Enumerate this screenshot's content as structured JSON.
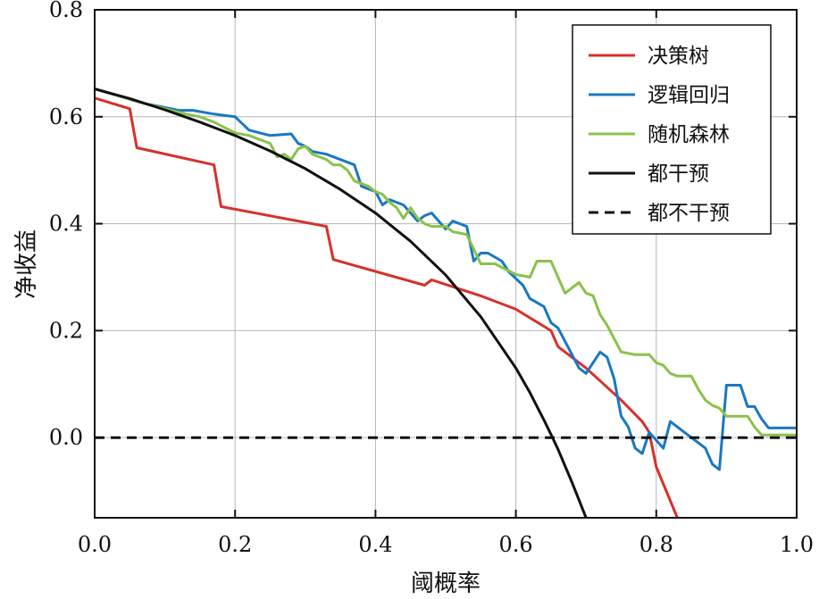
{
  "chart_data": {
    "type": "line",
    "xlabel": "阈概率",
    "ylabel": "净收益",
    "xlim": [
      0.0,
      1.0
    ],
    "ylim": [
      -0.15,
      0.8
    ],
    "xticks": [
      0.0,
      0.2,
      0.4,
      0.6,
      0.8,
      1.0
    ],
    "xtick_labels": [
      "0.0",
      "0.2",
      "0.4",
      "0.6",
      "0.8",
      "1.0"
    ],
    "yticks": [
      0.0,
      0.2,
      0.4,
      0.6,
      0.8
    ],
    "ytick_labels": [
      "0.0",
      "0.2",
      "0.4",
      "0.6",
      "0.8"
    ],
    "grid": true,
    "legend_position": "top-right",
    "series": [
      {
        "name": "决策树",
        "color": "#d7302a",
        "style": "solid",
        "x": [
          0.0,
          0.05,
          0.06,
          0.17,
          0.18,
          0.33,
          0.34,
          0.47,
          0.48,
          0.55,
          0.6,
          0.65,
          0.66,
          0.7,
          0.75,
          0.78,
          0.79,
          0.8,
          0.83
        ],
        "y": [
          0.635,
          0.615,
          0.542,
          0.51,
          0.432,
          0.395,
          0.333,
          0.285,
          0.295,
          0.265,
          0.24,
          0.2,
          0.17,
          0.13,
          0.07,
          0.03,
          0.01,
          -0.055,
          -0.15
        ]
      },
      {
        "name": "逻辑回归",
        "color": "#1a78c2",
        "style": "solid",
        "x": [
          0.0,
          0.07,
          0.09,
          0.12,
          0.14,
          0.17,
          0.2,
          0.22,
          0.25,
          0.28,
          0.29,
          0.3,
          0.31,
          0.33,
          0.35,
          0.37,
          0.38,
          0.4,
          0.41,
          0.42,
          0.43,
          0.44,
          0.46,
          0.47,
          0.48,
          0.5,
          0.51,
          0.53,
          0.54,
          0.55,
          0.56,
          0.58,
          0.59,
          0.61,
          0.62,
          0.64,
          0.65,
          0.66,
          0.67,
          0.69,
          0.7,
          0.72,
          0.73,
          0.74,
          0.75,
          0.76,
          0.77,
          0.78,
          0.79,
          0.8,
          0.81,
          0.82,
          0.83,
          0.84,
          0.85,
          0.86,
          0.87,
          0.88,
          0.89,
          0.9,
          0.91,
          0.92,
          0.93,
          0.94,
          0.95,
          0.96,
          1.0
        ],
        "y": [
          0.652,
          0.625,
          0.62,
          0.612,
          0.612,
          0.605,
          0.6,
          0.575,
          0.565,
          0.568,
          0.55,
          0.545,
          0.535,
          0.53,
          0.52,
          0.51,
          0.47,
          0.46,
          0.435,
          0.445,
          0.44,
          0.435,
          0.405,
          0.415,
          0.42,
          0.39,
          0.405,
          0.395,
          0.33,
          0.345,
          0.345,
          0.33,
          0.31,
          0.285,
          0.26,
          0.245,
          0.215,
          0.205,
          0.18,
          0.13,
          0.12,
          0.16,
          0.15,
          0.11,
          0.04,
          0.02,
          -0.02,
          -0.03,
          0.01,
          -0.005,
          -0.02,
          0.03,
          0.02,
          0.01,
          0.0,
          -0.01,
          -0.02,
          -0.05,
          -0.06,
          0.098,
          0.098,
          0.098,
          0.058,
          0.058,
          0.035,
          0.018,
          0.018
        ]
      },
      {
        "name": "随机森林",
        "color": "#8ac24a",
        "style": "solid",
        "x": [
          0.0,
          0.07,
          0.1,
          0.13,
          0.15,
          0.17,
          0.2,
          0.22,
          0.25,
          0.26,
          0.27,
          0.28,
          0.29,
          0.3,
          0.31,
          0.33,
          0.34,
          0.35,
          0.36,
          0.37,
          0.38,
          0.39,
          0.4,
          0.41,
          0.42,
          0.43,
          0.44,
          0.45,
          0.46,
          0.47,
          0.48,
          0.5,
          0.51,
          0.53,
          0.55,
          0.57,
          0.6,
          0.62,
          0.63,
          0.65,
          0.67,
          0.69,
          0.7,
          0.71,
          0.72,
          0.73,
          0.75,
          0.77,
          0.79,
          0.8,
          0.81,
          0.82,
          0.83,
          0.85,
          0.86,
          0.87,
          0.88,
          0.89,
          0.9,
          0.91,
          0.93,
          0.94,
          0.95,
          1.0
        ],
        "y": [
          0.652,
          0.625,
          0.615,
          0.605,
          0.6,
          0.59,
          0.57,
          0.565,
          0.55,
          0.525,
          0.53,
          0.52,
          0.54,
          0.545,
          0.53,
          0.52,
          0.51,
          0.51,
          0.5,
          0.48,
          0.475,
          0.47,
          0.46,
          0.455,
          0.44,
          0.43,
          0.41,
          0.43,
          0.41,
          0.4,
          0.395,
          0.395,
          0.385,
          0.38,
          0.325,
          0.325,
          0.305,
          0.3,
          0.33,
          0.33,
          0.27,
          0.29,
          0.27,
          0.265,
          0.23,
          0.21,
          0.16,
          0.155,
          0.155,
          0.14,
          0.135,
          0.12,
          0.115,
          0.115,
          0.09,
          0.07,
          0.06,
          0.055,
          0.04,
          0.04,
          0.04,
          0.02,
          0.005,
          0.005
        ]
      },
      {
        "name": "都干预",
        "color": "#111111",
        "style": "solid",
        "x": [
          0.0,
          0.05,
          0.1,
          0.15,
          0.2,
          0.25,
          0.3,
          0.35,
          0.4,
          0.45,
          0.5,
          0.55,
          0.6,
          0.62,
          0.64,
          0.65,
          0.66,
          0.68,
          0.7
        ],
        "y": [
          0.652,
          0.634,
          0.613,
          0.59,
          0.565,
          0.536,
          0.503,
          0.464,
          0.42,
          0.367,
          0.304,
          0.226,
          0.13,
          0.084,
          0.033,
          0.006,
          -0.022,
          -0.084,
          -0.15
        ]
      },
      {
        "name": "都不干预",
        "color": "#111111",
        "style": "dashed",
        "x": [
          0.0,
          1.0
        ],
        "y": [
          0.0,
          0.0
        ]
      }
    ]
  }
}
